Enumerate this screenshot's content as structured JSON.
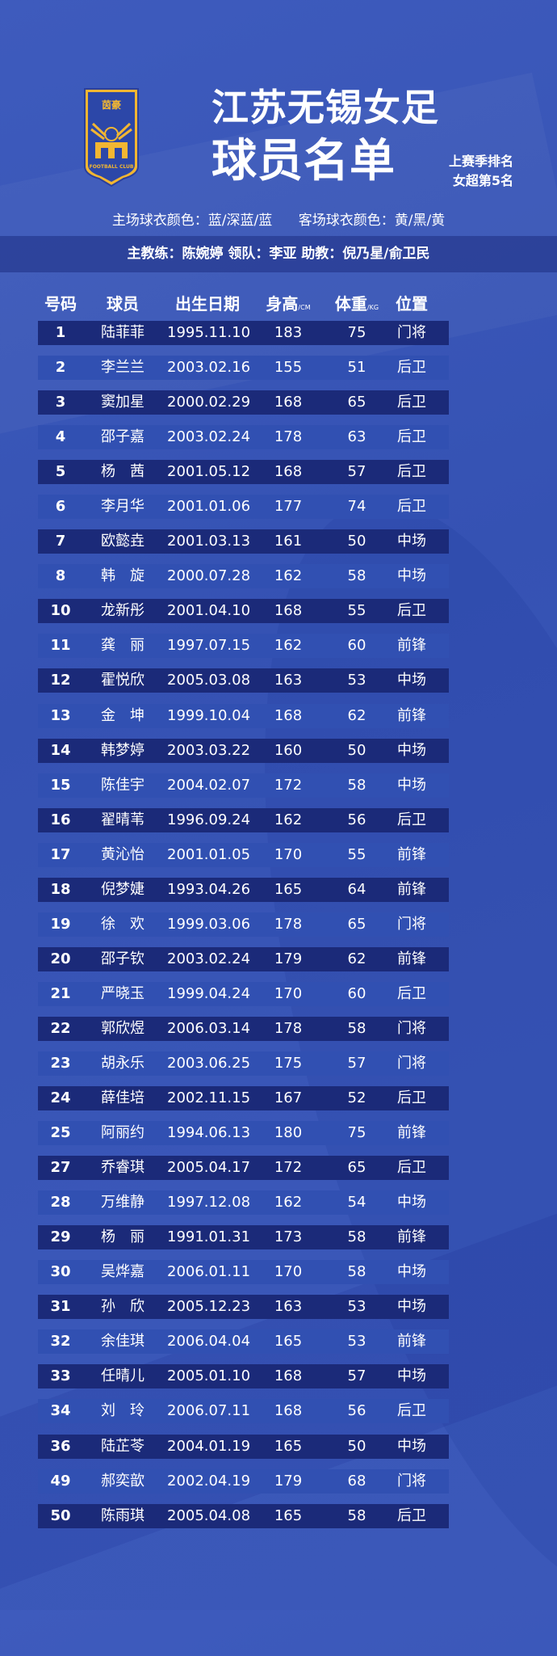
{
  "header": {
    "logo_text_top": "茵豪",
    "logo_text_bottom": "FOOTBALL CLUB",
    "title_line1": "江苏无锡女足",
    "title_line2": "球员名单",
    "rank_line1": "上赛季排名",
    "rank_line2": "女超第5名",
    "brand_colors": {
      "background": "#3a57b8",
      "gold": "#f2b632",
      "dark_row": "#1b2a79",
      "light_row": "#3150b2"
    }
  },
  "jersey": {
    "home": "主场球衣颜色：蓝/深蓝/蓝",
    "away": "客场球衣颜色：黄/黑/黄"
  },
  "staff": {
    "text": "主教练：陈婉婷   领队：李亚   助教：倪乃星/俞卫民"
  },
  "table": {
    "headers": {
      "number": "号码",
      "player": "球员",
      "birth": "出生日期",
      "height": "身高",
      "height_unit": "/CM",
      "weight": "体重",
      "weight_unit": "/KG",
      "position": "位置"
    },
    "rows": [
      [
        "1",
        "陆菲菲",
        "1995.11.10",
        "183",
        "75",
        "门将"
      ],
      [
        "2",
        "李兰兰",
        "2003.02.16",
        "155",
        "51",
        "后卫"
      ],
      [
        "3",
        "窦加星",
        "2000.02.29",
        "168",
        "65",
        "后卫"
      ],
      [
        "4",
        "邵子嘉",
        "2003.02.24",
        "178",
        "63",
        "后卫"
      ],
      [
        "5",
        "杨　茜",
        "2001.05.12",
        "168",
        "57",
        "后卫"
      ],
      [
        "6",
        "李月华",
        "2001.01.06",
        "177",
        "74",
        "后卫"
      ],
      [
        "7",
        "欧懿垚",
        "2001.03.13",
        "161",
        "50",
        "中场"
      ],
      [
        "8",
        "韩　旋",
        "2000.07.28",
        "162",
        "58",
        "中场"
      ],
      [
        "10",
        "龙新彤",
        "2001.04.10",
        "168",
        "55",
        "后卫"
      ],
      [
        "11",
        "龚　丽",
        "1997.07.15",
        "162",
        "60",
        "前锋"
      ],
      [
        "12",
        "霍悦欣",
        "2005.03.08",
        "163",
        "53",
        "中场"
      ],
      [
        "13",
        "金　坤",
        "1999.10.04",
        "168",
        "62",
        "前锋"
      ],
      [
        "14",
        "韩梦婷",
        "2003.03.22",
        "160",
        "50",
        "中场"
      ],
      [
        "15",
        "陈佳宇",
        "2004.02.07",
        "172",
        "58",
        "中场"
      ],
      [
        "16",
        "翟晴苇",
        "1996.09.24",
        "162",
        "56",
        "后卫"
      ],
      [
        "17",
        "黄沁怡",
        "2001.01.05",
        "170",
        "55",
        "前锋"
      ],
      [
        "18",
        "倪梦婕",
        "1993.04.26",
        "165",
        "64",
        "前锋"
      ],
      [
        "19",
        "徐　欢",
        "1999.03.06",
        "178",
        "65",
        "门将"
      ],
      [
        "20",
        "邵子钦",
        "2003.02.24",
        "179",
        "62",
        "前锋"
      ],
      [
        "21",
        "严晓玉",
        "1999.04.24",
        "170",
        "60",
        "后卫"
      ],
      [
        "22",
        "郭欣煜",
        "2006.03.14",
        "178",
        "58",
        "门将"
      ],
      [
        "23",
        "胡永乐",
        "2003.06.25",
        "175",
        "57",
        "门将"
      ],
      [
        "24",
        "薛佳培",
        "2002.11.15",
        "167",
        "52",
        "后卫"
      ],
      [
        "25",
        "阿丽约",
        "1994.06.13",
        "180",
        "75",
        "前锋"
      ],
      [
        "27",
        "乔睿琪",
        "2005.04.17",
        "172",
        "65",
        "后卫"
      ],
      [
        "28",
        "万维静",
        "1997.12.08",
        "162",
        "54",
        "中场"
      ],
      [
        "29",
        "杨　丽",
        "1991.01.31",
        "173",
        "58",
        "前锋"
      ],
      [
        "30",
        "吴烨嘉",
        "2006.01.11",
        "170",
        "58",
        "中场"
      ],
      [
        "31",
        "孙　欣",
        "2005.12.23",
        "163",
        "53",
        "中场"
      ],
      [
        "32",
        "余佳琪",
        "2006.04.04",
        "165",
        "53",
        "前锋"
      ],
      [
        "33",
        "任晴儿",
        "2005.01.10",
        "168",
        "57",
        "中场"
      ],
      [
        "34",
        "刘　玲",
        "2006.07.11",
        "168",
        "56",
        "后卫"
      ],
      [
        "36",
        "陆芷苓",
        "2004.01.19",
        "165",
        "50",
        "中场"
      ],
      [
        "49",
        "郝奕歆",
        "2002.04.19",
        "179",
        "68",
        "门将"
      ],
      [
        "50",
        "陈雨琪",
        "2005.04.08",
        "165",
        "58",
        "后卫"
      ]
    ]
  }
}
